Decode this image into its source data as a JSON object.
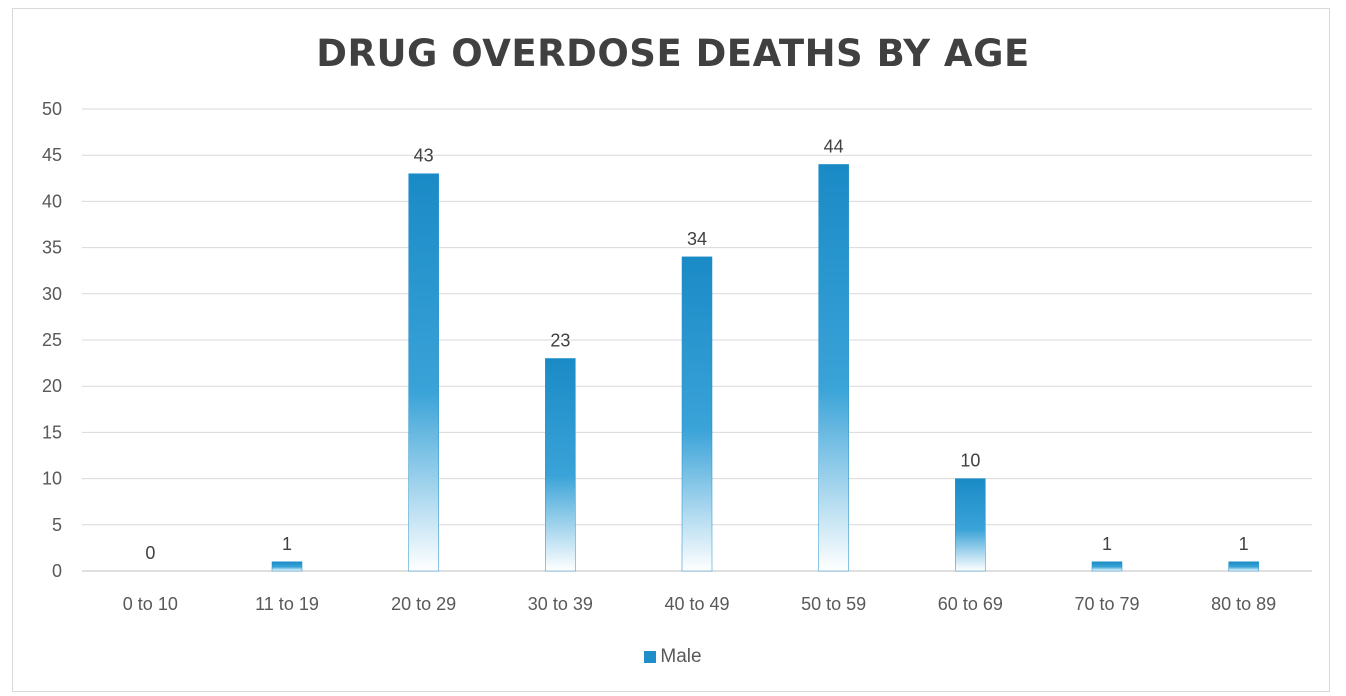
{
  "chart_data": {
    "type": "bar",
    "title": "DRUG OVERDOSE DEATHS BY AGE",
    "categories": [
      "0 to 10",
      "11 to 19",
      "20 to 29",
      "30 to 39",
      "40 to 49",
      "50 to 59",
      "60 to 69",
      "70 to 79",
      "80 to 89"
    ],
    "series": [
      {
        "name": "Male",
        "values": [
          0,
          1,
          43,
          23,
          34,
          44,
          10,
          1,
          1
        ],
        "color": "#1f8ec9"
      }
    ],
    "ylim": [
      0,
      50
    ],
    "yticks": [
      0,
      5,
      10,
      15,
      20,
      25,
      30,
      35,
      40,
      45,
      50
    ],
    "grid": true,
    "legend": "bottom",
    "data_labels": true
  }
}
